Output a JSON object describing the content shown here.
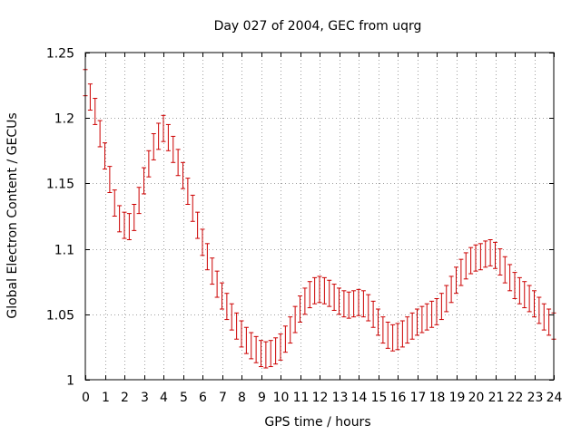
{
  "chart_data": {
    "type": "line",
    "title": "Day 027 of 2004, GEC from uqrg",
    "xlabel": "GPS time / hours",
    "ylabel": "Global Electron Content / GECUs",
    "xlim": [
      0,
      24
    ],
    "ylim": [
      1,
      1.25
    ],
    "x_ticks": [
      0,
      1,
      2,
      3,
      4,
      5,
      6,
      7,
      8,
      9,
      10,
      11,
      12,
      13,
      14,
      15,
      16,
      17,
      18,
      19,
      20,
      21,
      22,
      23,
      24
    ],
    "y_ticks": [
      1,
      1.05,
      1.1,
      1.15,
      1.2,
      1.25
    ],
    "y_tick_labels": [
      "1",
      "1.05",
      "1.1",
      "1.15",
      "1.2",
      "1.25"
    ],
    "grid": true,
    "error_bar": 0.01,
    "color": "#cc0000",
    "series": [
      {
        "name": "GEC",
        "x": [
          0.0,
          0.25,
          0.5,
          0.75,
          1.0,
          1.25,
          1.5,
          1.75,
          2.0,
          2.25,
          2.5,
          2.75,
          3.0,
          3.25,
          3.5,
          3.75,
          4.0,
          4.25,
          4.5,
          4.75,
          5.0,
          5.25,
          5.5,
          5.75,
          6.0,
          6.25,
          6.5,
          6.75,
          7.0,
          7.25,
          7.5,
          7.75,
          8.0,
          8.25,
          8.5,
          8.75,
          9.0,
          9.25,
          9.5,
          9.75,
          10.0,
          10.25,
          10.5,
          10.75,
          11.0,
          11.25,
          11.5,
          11.75,
          12.0,
          12.25,
          12.5,
          12.75,
          13.0,
          13.25,
          13.5,
          13.75,
          14.0,
          14.25,
          14.5,
          14.75,
          15.0,
          15.25,
          15.5,
          15.75,
          16.0,
          16.25,
          16.5,
          16.75,
          17.0,
          17.25,
          17.5,
          17.75,
          18.0,
          18.25,
          18.5,
          18.75,
          19.0,
          19.25,
          19.5,
          19.75,
          20.0,
          20.25,
          20.5,
          20.75,
          21.0,
          21.25,
          21.5,
          21.75,
          22.0,
          22.25,
          22.5,
          22.75,
          23.0,
          23.25,
          23.5,
          23.75,
          24.0
        ],
        "values": [
          1.227,
          1.216,
          1.205,
          1.188,
          1.171,
          1.153,
          1.135,
          1.123,
          1.118,
          1.117,
          1.124,
          1.137,
          1.152,
          1.165,
          1.178,
          1.186,
          1.192,
          1.185,
          1.176,
          1.166,
          1.156,
          1.144,
          1.131,
          1.118,
          1.105,
          1.094,
          1.083,
          1.073,
          1.064,
          1.056,
          1.048,
          1.041,
          1.035,
          1.03,
          1.026,
          1.023,
          1.02,
          1.019,
          1.02,
          1.022,
          1.025,
          1.031,
          1.038,
          1.046,
          1.054,
          1.06,
          1.065,
          1.068,
          1.069,
          1.068,
          1.066,
          1.063,
          1.06,
          1.058,
          1.057,
          1.058,
          1.059,
          1.058,
          1.055,
          1.05,
          1.044,
          1.038,
          1.034,
          1.032,
          1.033,
          1.035,
          1.038,
          1.041,
          1.044,
          1.046,
          1.048,
          1.05,
          1.052,
          1.056,
          1.062,
          1.069,
          1.076,
          1.082,
          1.087,
          1.091,
          1.093,
          1.094,
          1.096,
          1.097,
          1.095,
          1.09,
          1.084,
          1.078,
          1.072,
          1.068,
          1.065,
          1.062,
          1.058,
          1.053,
          1.048,
          1.044,
          1.041
        ]
      }
    ]
  }
}
